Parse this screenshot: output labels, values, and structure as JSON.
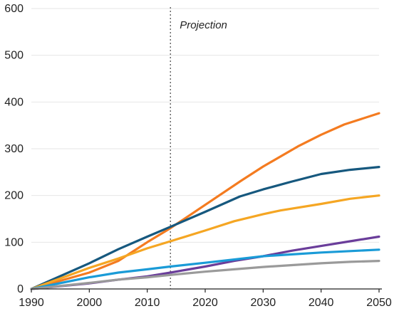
{
  "chart_data": {
    "type": "line",
    "title": "",
    "xlabel": "",
    "ylabel": "",
    "xlim": [
      1990,
      2050
    ],
    "ylim": [
      0,
      600
    ],
    "x_ticks": [
      1990,
      2000,
      2010,
      2020,
      2030,
      2040,
      2050
    ],
    "y_ticks": [
      0,
      100,
      200,
      300,
      400,
      500,
      600
    ],
    "x_tick_labels": [
      "1990",
      "2000",
      "2010",
      "2020",
      "2030",
      "2040",
      "2050"
    ],
    "y_tick_labels": [
      "0",
      "100",
      "200",
      "300",
      "400",
      "500",
      "600"
    ],
    "grid": "horizontal",
    "legend": "none",
    "projection_start": 2014,
    "annotation": "Projection",
    "series": [
      {
        "color": "#f47b20",
        "x": [
          1990,
          2000,
          2005,
          2010,
          2014,
          2020,
          2026,
          2030,
          2036,
          2040,
          2044,
          2050
        ],
        "values": [
          0,
          35,
          60,
          100,
          130,
          180,
          230,
          262,
          305,
          330,
          352,
          376
        ]
      },
      {
        "color": "#16587e",
        "x": [
          1990,
          2000,
          2005,
          2010,
          2014,
          2020,
          2026,
          2030,
          2035,
          2040,
          2045,
          2050
        ],
        "values": [
          0,
          55,
          85,
          112,
          133,
          165,
          198,
          213,
          230,
          246,
          255,
          261
        ]
      },
      {
        "color": "#f5a623",
        "x": [
          1990,
          2000,
          2005,
          2010,
          2014,
          2020,
          2025,
          2030,
          2033,
          2040,
          2045,
          2050
        ],
        "values": [
          0,
          45,
          65,
          87,
          102,
          125,
          145,
          160,
          168,
          182,
          193,
          200
        ]
      },
      {
        "color": "#6a3d9a",
        "x": [
          1990,
          2000,
          2005,
          2010,
          2014,
          2020,
          2025,
          2030,
          2035,
          2040,
          2045,
          2050
        ],
        "values": [
          0,
          12,
          20,
          27,
          35,
          48,
          60,
          70,
          82,
          92,
          102,
          112
        ]
      },
      {
        "color": "#1a9bd7",
        "x": [
          1990,
          2000,
          2005,
          2010,
          2014,
          2020,
          2025,
          2030,
          2035,
          2040,
          2045,
          2050
        ],
        "values": [
          0,
          25,
          35,
          42,
          48,
          56,
          63,
          70,
          74,
          78,
          81,
          84
        ]
      },
      {
        "color": "#9a9a9a",
        "x": [
          1990,
          2000,
          2005,
          2010,
          2014,
          2020,
          2025,
          2030,
          2035,
          2040,
          2045,
          2050
        ],
        "values": [
          0,
          13,
          20,
          25,
          30,
          37,
          42,
          47,
          51,
          55,
          58,
          60
        ]
      }
    ]
  }
}
